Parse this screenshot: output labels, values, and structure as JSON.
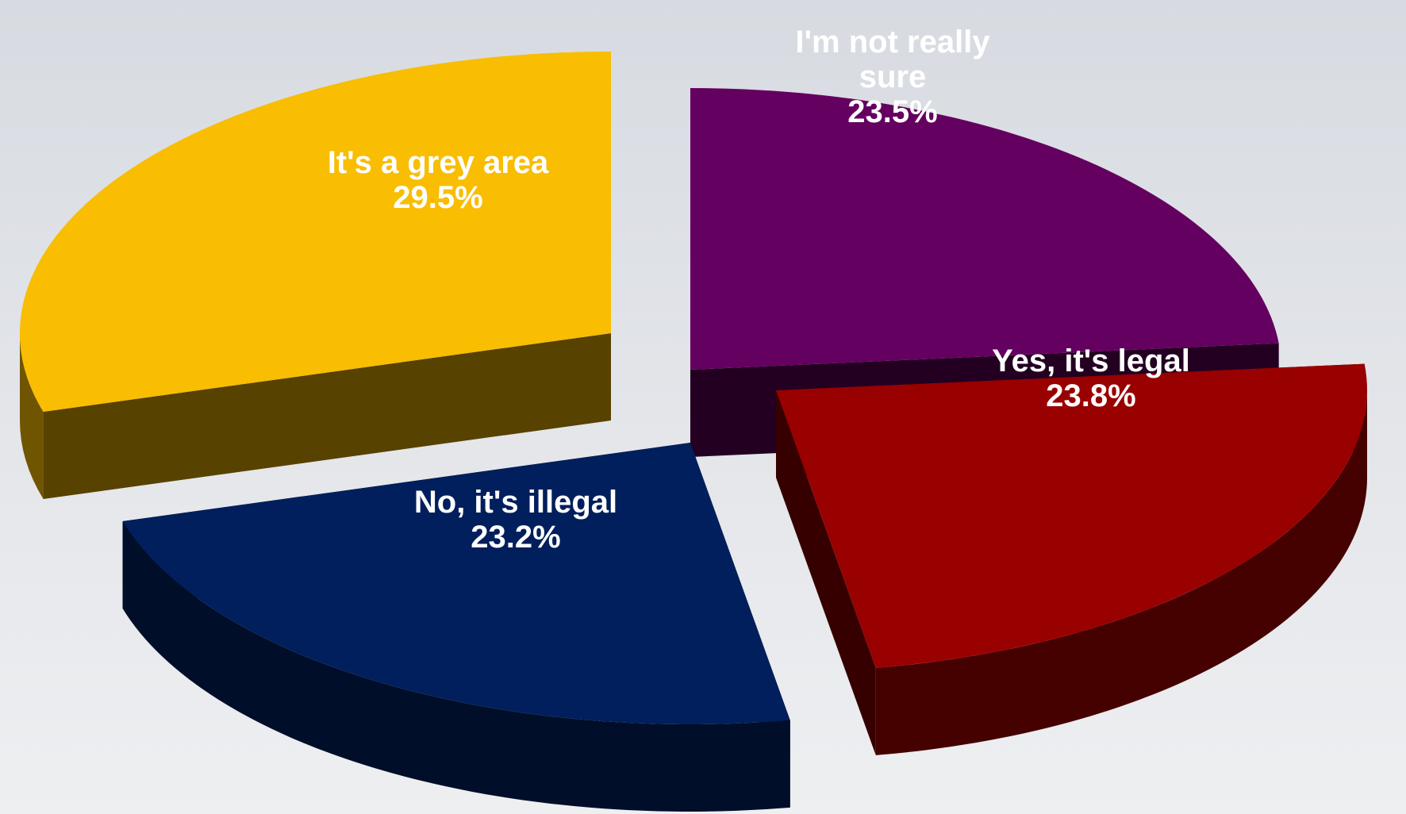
{
  "chart_data": {
    "type": "pie",
    "style": "3d-exploded",
    "slices": [
      {
        "label_lines": [
          "I'm not really",
          "sure"
        ],
        "value": 23.5,
        "value_label": "23.5%",
        "color": "#64005f"
      },
      {
        "label_lines": [
          "Yes, it's legal"
        ],
        "value": 23.8,
        "value_label": "23.8%",
        "color": "#990000"
      },
      {
        "label_lines": [
          "No, it's illegal"
        ],
        "value": 23.2,
        "value_label": "23.2%",
        "color": "#001f5c"
      },
      {
        "label_lines": [
          "It's a grey area"
        ],
        "value": 29.5,
        "value_label": "29.5%",
        "color": "#f9bd01"
      }
    ],
    "legend": "none"
  }
}
